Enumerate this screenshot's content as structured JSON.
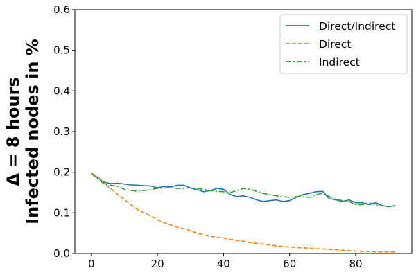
{
  "chart_data": {
    "type": "line",
    "ylabel": [
      "Δ = 8 hours",
      "Infected nodes in %"
    ],
    "xlim": [
      -5,
      97
    ],
    "ylim": [
      0.0,
      0.6
    ],
    "x_ticks": [
      0,
      20,
      40,
      60,
      80
    ],
    "y_ticks": [
      0.0,
      0.1,
      0.2,
      0.3,
      0.4,
      0.5,
      0.6
    ],
    "y_tick_labels": [
      "0.0",
      "0.1",
      "0.2",
      "0.3",
      "0.4",
      "0.5",
      "0.6"
    ],
    "grid": false,
    "legend_position": "top-right",
    "series": [
      {
        "name": "Direct/Indirect",
        "color": "#1f77b4",
        "dash": "solid",
        "x": [
          0,
          2,
          4,
          6,
          8,
          10,
          12,
          14,
          16,
          18,
          20,
          22,
          24,
          26,
          28,
          30,
          32,
          34,
          36,
          38,
          40,
          42,
          44,
          46,
          48,
          50,
          52,
          54,
          56,
          58,
          60,
          62,
          64,
          66,
          68,
          70,
          72,
          74,
          76,
          78,
          80,
          82,
          84,
          86,
          88,
          90,
          92
        ],
        "y": [
          0.197,
          0.185,
          0.175,
          0.172,
          0.173,
          0.171,
          0.169,
          0.168,
          0.167,
          0.166,
          0.162,
          0.165,
          0.164,
          0.168,
          0.168,
          0.161,
          0.157,
          0.152,
          0.155,
          0.16,
          0.158,
          0.145,
          0.14,
          0.142,
          0.138,
          0.132,
          0.128,
          0.13,
          0.132,
          0.128,
          0.13,
          0.138,
          0.145,
          0.148,
          0.152,
          0.153,
          0.135,
          0.132,
          0.128,
          0.132,
          0.125,
          0.125,
          0.12,
          0.125,
          0.118,
          0.115,
          0.118
        ]
      },
      {
        "name": "Direct",
        "color": "#ff7f0e",
        "dash": "dashed",
        "x": [
          0,
          2,
          4,
          6,
          8,
          10,
          12,
          14,
          16,
          18,
          20,
          22,
          24,
          26,
          28,
          30,
          32,
          34,
          36,
          38,
          40,
          42,
          44,
          46,
          48,
          50,
          52,
          54,
          56,
          58,
          60,
          62,
          64,
          66,
          68,
          70,
          72,
          74,
          76,
          78,
          80,
          82,
          84,
          86,
          88,
          90,
          92
        ],
        "y": [
          0.198,
          0.188,
          0.172,
          0.158,
          0.145,
          0.133,
          0.12,
          0.108,
          0.1,
          0.092,
          0.083,
          0.076,
          0.07,
          0.065,
          0.061,
          0.056,
          0.05,
          0.046,
          0.042,
          0.04,
          0.038,
          0.035,
          0.032,
          0.03,
          0.027,
          0.025,
          0.023,
          0.021,
          0.019,
          0.017,
          0.016,
          0.015,
          0.014,
          0.013,
          0.012,
          0.011,
          0.01,
          0.009,
          0.008,
          0.007,
          0.006,
          0.005,
          0.005,
          0.004,
          0.004,
          0.004,
          0.004
        ]
      },
      {
        "name": "Indirect",
        "color": "#2ca02c",
        "dash": "dashdot",
        "x": [
          0,
          2,
          4,
          6,
          8,
          10,
          12,
          14,
          16,
          18,
          20,
          22,
          24,
          26,
          28,
          30,
          32,
          34,
          36,
          38,
          40,
          42,
          44,
          46,
          48,
          50,
          52,
          54,
          56,
          58,
          60,
          62,
          64,
          66,
          68,
          70,
          72,
          74,
          76,
          78,
          80,
          82,
          84,
          86,
          88,
          90,
          92
        ],
        "y": [
          0.197,
          0.183,
          0.17,
          0.168,
          0.165,
          0.158,
          0.155,
          0.153,
          0.155,
          0.158,
          0.16,
          0.161,
          0.162,
          0.16,
          0.16,
          0.162,
          0.16,
          0.158,
          0.155,
          0.153,
          0.152,
          0.15,
          0.155,
          0.16,
          0.158,
          0.153,
          0.148,
          0.145,
          0.142,
          0.14,
          0.138,
          0.14,
          0.14,
          0.138,
          0.145,
          0.148,
          0.14,
          0.133,
          0.13,
          0.128,
          0.12,
          0.12,
          0.125,
          0.12,
          0.118,
          0.115,
          0.118
        ]
      }
    ]
  }
}
